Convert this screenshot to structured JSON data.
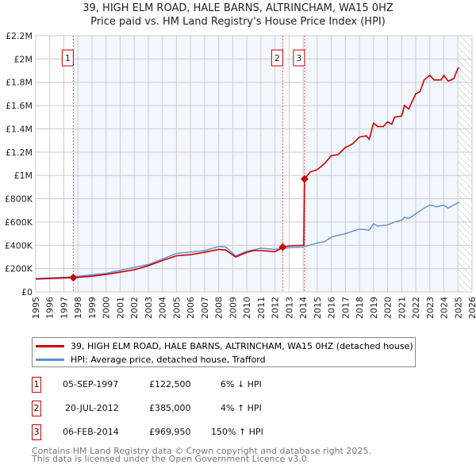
{
  "chart_data": {
    "type": "line",
    "title": "39, HIGH ELM ROAD, HALE BARNS, ALTRINCHAM, WA15 0HZ",
    "subtitle": "Price paid vs. HM Land Registry's House Price Index (HPI)",
    "xlim": [
      1995,
      2026
    ],
    "ylim": [
      0,
      2200000
    ],
    "yticks": [
      {
        "v": 0,
        "l": "£0"
      },
      {
        "v": 200000,
        "l": "£200K"
      },
      {
        "v": 400000,
        "l": "£400K"
      },
      {
        "v": 600000,
        "l": "£600K"
      },
      {
        "v": 800000,
        "l": "£800K"
      },
      {
        "v": 1000000,
        "l": "£1M"
      },
      {
        "v": 1200000,
        "l": "£1.2M"
      },
      {
        "v": 1400000,
        "l": "£1.4M"
      },
      {
        "v": 1600000,
        "l": "£1.6M"
      },
      {
        "v": 1800000,
        "l": "£1.8M"
      },
      {
        "v": 2000000,
        "l": "£2M"
      },
      {
        "v": 2200000,
        "l": "£2.2M"
      }
    ],
    "xticks": [
      "1995",
      "1996",
      "1997",
      "1998",
      "1999",
      "2000",
      "2001",
      "2002",
      "2003",
      "2004",
      "2005",
      "2006",
      "2007",
      "2008",
      "2009",
      "2010",
      "2011",
      "2012",
      "2013",
      "2014",
      "2015",
      "2016",
      "2017",
      "2018",
      "2019",
      "2020",
      "2021",
      "2022",
      "2023",
      "2024",
      "2025",
      "2026"
    ],
    "series": [
      {
        "name": "39, HIGH ELM ROAD, HALE BARNS, ALTRINCHAM, WA15 0HZ (detached house)",
        "color": "#cc0000",
        "points": [
          [
            1995,
            110000
          ],
          [
            1997.67,
            122500
          ],
          [
            1998,
            125000
          ],
          [
            1999,
            135000
          ],
          [
            2000,
            150000
          ],
          [
            2001,
            170000
          ],
          [
            2002,
            190000
          ],
          [
            2003,
            225000
          ],
          [
            2004,
            270000
          ],
          [
            2005,
            310000
          ],
          [
            2006,
            320000
          ],
          [
            2007,
            340000
          ],
          [
            2008,
            365000
          ],
          [
            2008.5,
            360000
          ],
          [
            2009.2,
            300000
          ],
          [
            2010,
            340000
          ],
          [
            2010.5,
            355000
          ],
          [
            2011,
            355000
          ],
          [
            2012,
            345000
          ],
          [
            2012.55,
            385000
          ],
          [
            2013,
            395000
          ],
          [
            2014.05,
            400000
          ],
          [
            2014.1,
            969950
          ],
          [
            2014.5,
            1030000
          ],
          [
            2015,
            1050000
          ],
          [
            2015.5,
            1100000
          ],
          [
            2016,
            1170000
          ],
          [
            2016.5,
            1180000
          ],
          [
            2017,
            1240000
          ],
          [
            2017.5,
            1270000
          ],
          [
            2018,
            1330000
          ],
          [
            2018.5,
            1340000
          ],
          [
            2018.7,
            1310000
          ],
          [
            2019,
            1450000
          ],
          [
            2019.3,
            1420000
          ],
          [
            2019.7,
            1420000
          ],
          [
            2020,
            1460000
          ],
          [
            2020.3,
            1440000
          ],
          [
            2020.5,
            1500000
          ],
          [
            2021,
            1510000
          ],
          [
            2021.2,
            1600000
          ],
          [
            2021.5,
            1570000
          ],
          [
            2022,
            1700000
          ],
          [
            2022.3,
            1720000
          ],
          [
            2022.6,
            1820000
          ],
          [
            2023,
            1860000
          ],
          [
            2023.3,
            1820000
          ],
          [
            2023.8,
            1820000
          ],
          [
            2024,
            1860000
          ],
          [
            2024.3,
            1810000
          ],
          [
            2024.7,
            1830000
          ],
          [
            2025,
            1920000
          ],
          [
            2025.1,
            1920000
          ]
        ]
      },
      {
        "name": "HPI: Average price, detached house, Trafford",
        "color": "#5b8fd4",
        "points": [
          [
            1995,
            115000
          ],
          [
            1997.67,
            130000
          ],
          [
            2000,
            160000
          ],
          [
            2003,
            235000
          ],
          [
            2005,
            330000
          ],
          [
            2007,
            355000
          ],
          [
            2008,
            390000
          ],
          [
            2008.5,
            385000
          ],
          [
            2009.2,
            310000
          ],
          [
            2010,
            350000
          ],
          [
            2011,
            375000
          ],
          [
            2012,
            365000
          ],
          [
            2012.55,
            370000
          ],
          [
            2013,
            380000
          ],
          [
            2014,
            385000
          ],
          [
            2015,
            420000
          ],
          [
            2015.5,
            430000
          ],
          [
            2016,
            470000
          ],
          [
            2017,
            500000
          ],
          [
            2018,
            540000
          ],
          [
            2018.7,
            530000
          ],
          [
            2019,
            585000
          ],
          [
            2019.3,
            565000
          ],
          [
            2020,
            575000
          ],
          [
            2020.5,
            600000
          ],
          [
            2021,
            615000
          ],
          [
            2021.2,
            640000
          ],
          [
            2021.5,
            630000
          ],
          [
            2022,
            670000
          ],
          [
            2022.6,
            720000
          ],
          [
            2023,
            745000
          ],
          [
            2023.5,
            730000
          ],
          [
            2024,
            745000
          ],
          [
            2024.3,
            720000
          ],
          [
            2025,
            765000
          ],
          [
            2025.1,
            770000
          ]
        ]
      }
    ],
    "sales": [
      {
        "n": "1",
        "x": 1997.67,
        "y": 122500
      },
      {
        "n": "2",
        "x": 2012.55,
        "y": 385000
      },
      {
        "n": "3",
        "x": 2014.1,
        "y": 969950
      }
    ],
    "forecast_from": 2025
  },
  "transactions": [
    {
      "n": "1",
      "date": "05-SEP-1997",
      "price": "£122,500",
      "hpi": "6% ↓ HPI"
    },
    {
      "n": "2",
      "date": "20-JUL-2012",
      "price": "£385,000",
      "hpi": "4% ↑ HPI"
    },
    {
      "n": "3",
      "date": "06-FEB-2014",
      "price": "£969,950",
      "hpi": "150% ↑ HPI"
    }
  ],
  "footer": {
    "line1": "Contains HM Land Registry data © Crown copyright and database right 2025.",
    "line2": "This data is licensed under the Open Government Licence v3.0."
  }
}
